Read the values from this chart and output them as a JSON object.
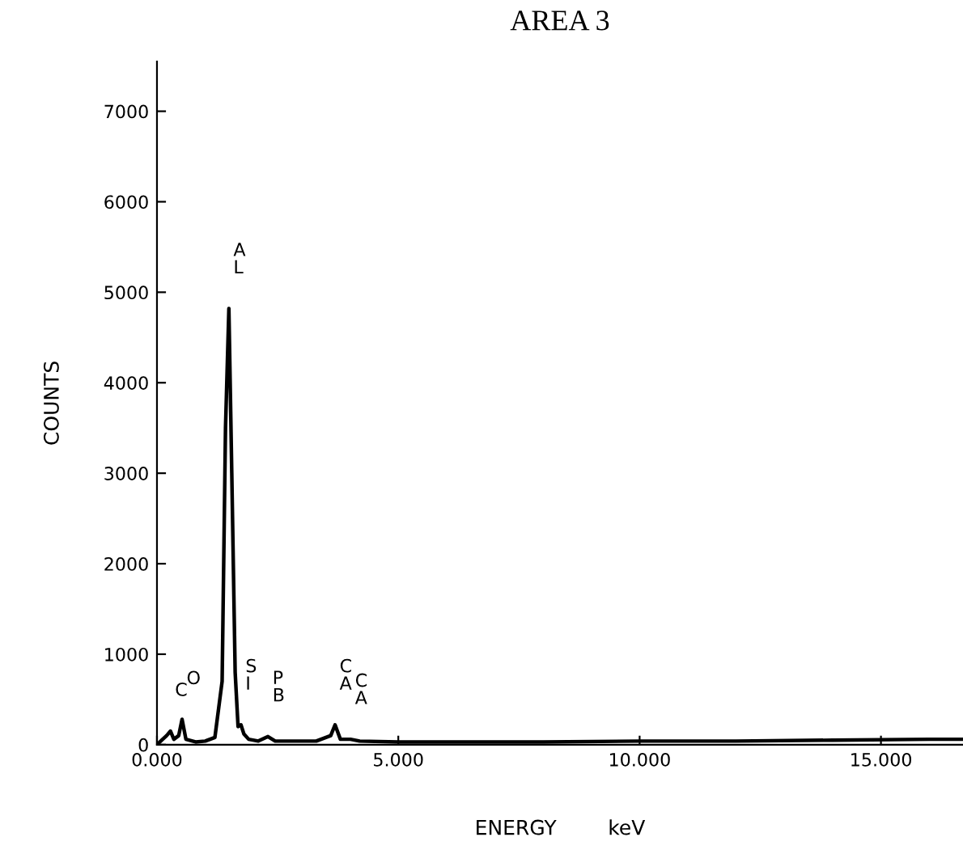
{
  "chart_data": {
    "type": "line",
    "title": "AREA 3",
    "xlabel": "ENERGY        keV",
    "ylabel": "COUNTS",
    "x": [
      0.0,
      0.1,
      0.2,
      0.28,
      0.35,
      0.45,
      0.52,
      0.6,
      0.8,
      1.0,
      1.2,
      1.35,
      1.42,
      1.49,
      1.55,
      1.62,
      1.68,
      1.74,
      1.8,
      1.9,
      2.1,
      2.3,
      2.45,
      2.8,
      3.3,
      3.6,
      3.69,
      3.8,
      4.01,
      4.2,
      5.0,
      6.0,
      8.0,
      10.0,
      12.0,
      14.0,
      16.0,
      16.7
    ],
    "series": [
      {
        "color": "#000000",
        "values": [
          0,
          50,
          100,
          150,
          60,
          100,
          280,
          60,
          30,
          40,
          80,
          700,
          3500,
          4820,
          3000,
          800,
          200,
          220,
          120,
          60,
          40,
          90,
          40,
          40,
          40,
          100,
          220,
          60,
          60,
          40,
          30,
          30,
          30,
          40,
          40,
          50,
          60,
          60
        ]
      }
    ],
    "xlim": [
      0,
      16.7
    ],
    "ylim": [
      0,
      7550
    ],
    "xticks": [
      {
        "value": 0,
        "label": "0.000"
      },
      {
        "value": 5,
        "label": "5.000"
      },
      {
        "value": 10,
        "label": "10.000"
      },
      {
        "value": 15,
        "label": "15.000"
      }
    ],
    "yticks": [
      0,
      1000,
      2000,
      3000,
      4000,
      5000,
      6000,
      7000
    ],
    "annotations": [
      {
        "text": "C",
        "x": 0.28,
        "y": 150
      },
      {
        "text": "O",
        "x": 0.52,
        "y": 280
      },
      {
        "text": "AL",
        "x": 1.49,
        "y": 4820
      },
      {
        "text": "SI",
        "x": 1.74,
        "y": 220
      },
      {
        "text": "PB",
        "x": 2.3,
        "y": 90
      },
      {
        "text": "CA",
        "x": 3.69,
        "y": 220
      },
      {
        "text": "CA",
        "x": 4.01,
        "y": 60
      }
    ],
    "grid": false,
    "legend": false,
    "marker": "none",
    "line_style": "solid"
  }
}
